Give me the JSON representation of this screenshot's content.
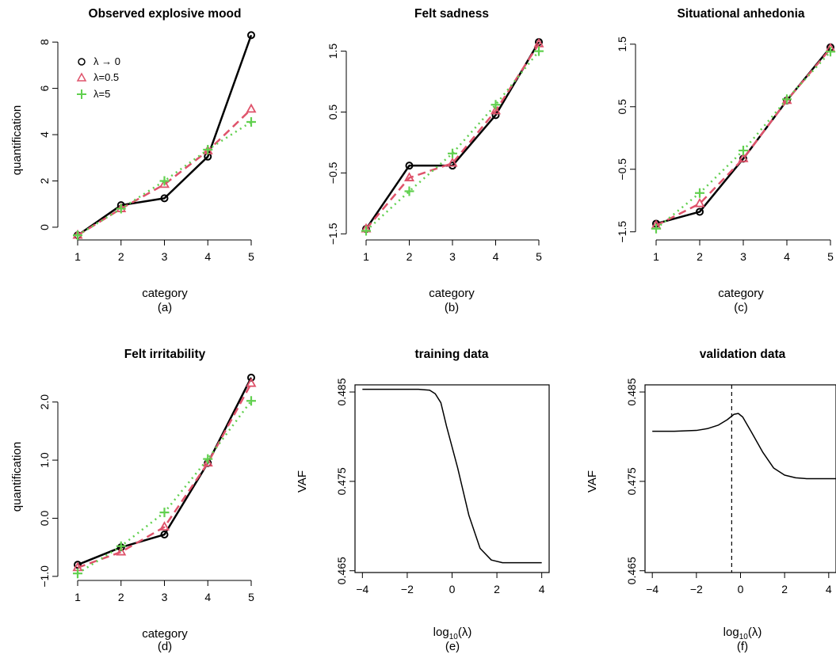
{
  "chart_data": [
    {
      "type": "line",
      "title": "Observed explosive mood",
      "xlabel": "category",
      "ylabel": "quantification",
      "sublabel": "(a)",
      "x": [
        1,
        2,
        3,
        4,
        5
      ],
      "xticks": [
        "1",
        "2",
        "3",
        "4",
        "5"
      ],
      "yticks": [
        "0",
        "2",
        "4",
        "6",
        "8"
      ],
      "ytick_values": [
        0,
        2,
        4,
        6,
        8
      ],
      "ylim": [
        -0.55,
        8.45
      ],
      "legend": [
        "λ → 0",
        "λ=0.5",
        "λ=5"
      ],
      "legend_position": "top-left",
      "series": [
        {
          "name": "λ → 0",
          "values": [
            -0.35,
            0.95,
            1.25,
            3.05,
            8.3
          ],
          "color": "#000000",
          "marker": "circle"
        },
        {
          "name": "λ=0.5",
          "values": [
            -0.35,
            0.8,
            1.85,
            3.3,
            5.1
          ],
          "color": "#DF536B",
          "marker": "triangle"
        },
        {
          "name": "λ=5",
          "values": [
            -0.35,
            0.8,
            2.0,
            3.35,
            4.55
          ],
          "color": "#61D04F",
          "marker": "plus"
        }
      ]
    },
    {
      "type": "line",
      "title": "Felt sadness",
      "xlabel": "category",
      "ylabel": "",
      "sublabel": "(b)",
      "x": [
        1,
        2,
        3,
        4,
        5
      ],
      "xticks": [
        "1",
        "2",
        "3",
        "4",
        "5"
      ],
      "yticks": [
        "−1.5",
        "−0.5",
        "0.5",
        "1.5"
      ],
      "ytick_values": [
        -1.5,
        -0.5,
        0.5,
        1.5
      ],
      "ylim": [
        -1.6,
        1.82
      ],
      "series": [
        {
          "name": "λ → 0",
          "values": [
            -1.42,
            -0.38,
            -0.38,
            0.45,
            1.65
          ],
          "color": "#000000",
          "marker": "circle"
        },
        {
          "name": "λ=0.5",
          "values": [
            -1.42,
            -0.58,
            -0.34,
            0.52,
            1.62
          ],
          "color": "#DF536B",
          "marker": "triangle"
        },
        {
          "name": "λ=5",
          "values": [
            -1.45,
            -0.8,
            -0.18,
            0.62,
            1.5
          ],
          "color": "#61D04F",
          "marker": "plus"
        }
      ]
    },
    {
      "type": "line",
      "title": "Situational anhedonia",
      "xlabel": "category",
      "ylabel": "",
      "sublabel": "(c)",
      "x": [
        1,
        2,
        3,
        4,
        5
      ],
      "xticks": [
        "1",
        "2",
        "3",
        "4",
        "5"
      ],
      "yticks": [
        "−1.5",
        "−0.5",
        "0.5",
        "1.5"
      ],
      "ytick_values": [
        -1.5,
        -0.5,
        0.5,
        1.5
      ],
      "ylim": [
        -1.63,
        1.7
      ],
      "series": [
        {
          "name": "λ → 0",
          "values": [
            -1.37,
            -1.18,
            -0.33,
            0.6,
            1.45
          ],
          "color": "#000000",
          "marker": "circle"
        },
        {
          "name": "λ=0.5",
          "values": [
            -1.4,
            -1.05,
            -0.33,
            0.6,
            1.43
          ],
          "color": "#DF536B",
          "marker": "triangle"
        },
        {
          "name": "λ=5",
          "values": [
            -1.45,
            -0.88,
            -0.2,
            0.62,
            1.38
          ],
          "color": "#61D04F",
          "marker": "plus"
        }
      ]
    },
    {
      "type": "line",
      "title": "Felt irritability",
      "xlabel": "category",
      "ylabel": "quantification",
      "sublabel": "(d)",
      "x": [
        1,
        2,
        3,
        4,
        5
      ],
      "xticks": [
        "1",
        "2",
        "3",
        "4",
        "5"
      ],
      "yticks": [
        "−1.0",
        "0.0",
        "1.0",
        "2.0"
      ],
      "ytick_values": [
        -1.0,
        0.0,
        1.0,
        2.0
      ],
      "ylim": [
        -1.07,
        2.5
      ],
      "series": [
        {
          "name": "λ → 0",
          "values": [
            -0.8,
            -0.5,
            -0.28,
            0.95,
            2.42
          ],
          "color": "#000000",
          "marker": "circle"
        },
        {
          "name": "λ=0.5",
          "values": [
            -0.85,
            -0.58,
            -0.15,
            0.95,
            2.32
          ],
          "color": "#DF536B",
          "marker": "triangle"
        },
        {
          "name": "λ=5",
          "values": [
            -0.95,
            -0.48,
            0.1,
            1.02,
            2.02
          ],
          "color": "#61D04F",
          "marker": "plus"
        }
      ]
    },
    {
      "type": "line",
      "title": "training data",
      "xlabel": "log10(λ)",
      "ylabel": "VAF",
      "sublabel": "(e)",
      "xticks": [
        "−4",
        "−2",
        "0",
        "2",
        "4"
      ],
      "xtick_values": [
        -4,
        -2,
        0,
        2,
        4
      ],
      "xlim": [
        -4.33,
        4.33
      ],
      "yticks": [
        "0.465",
        "0.475",
        "0.485"
      ],
      "ytick_values": [
        0.465,
        0.475,
        0.485
      ],
      "ylim": [
        0.4648,
        0.4858
      ],
      "boxed": true,
      "series": [
        {
          "values": [
            0.4853,
            0.4853,
            0.4853,
            0.4853,
            0.4852,
            0.4848,
            0.4838,
            0.4812,
            0.4765,
            0.4712,
            0.4675,
            0.4662,
            0.4659,
            0.4659,
            0.4659,
            0.4659,
            0.4659
          ],
          "x": [
            -4,
            -3,
            -2,
            -1.5,
            -1,
            -0.75,
            -0.5,
            -0.25,
            0.25,
            0.75,
            1.25,
            1.75,
            2.25,
            2.75,
            3.25,
            3.75,
            4
          ],
          "color": "#000000"
        }
      ]
    },
    {
      "type": "line",
      "title": "validation data",
      "xlabel": "log10(λ)",
      "ylabel": "VAF",
      "sublabel": "(f)",
      "xticks": [
        "−4",
        "−2",
        "0",
        "2",
        "4"
      ],
      "xtick_values": [
        -4,
        -2,
        0,
        2,
        4
      ],
      "xlim": [
        -4.33,
        4.33
      ],
      "yticks": [
        "0.465",
        "0.475",
        "0.485"
      ],
      "ytick_values": [
        0.465,
        0.475,
        0.485
      ],
      "ylim": [
        0.4648,
        0.4858
      ],
      "boxed": true,
      "vline": -0.4,
      "series": [
        {
          "values": [
            0.4806,
            0.4806,
            0.4807,
            0.4809,
            0.4813,
            0.4819,
            0.4825,
            0.4826,
            0.4822,
            0.4805,
            0.4783,
            0.4765,
            0.4757,
            0.4754,
            0.4753,
            0.4753,
            0.4753,
            0.4753
          ],
          "x": [
            -4,
            -3,
            -2,
            -1.5,
            -1,
            -0.6,
            -0.3,
            -0.1,
            0.1,
            0.5,
            1.0,
            1.5,
            2.0,
            2.5,
            3.0,
            3.5,
            4.0,
            4.33
          ],
          "color": "#000000"
        }
      ]
    }
  ]
}
